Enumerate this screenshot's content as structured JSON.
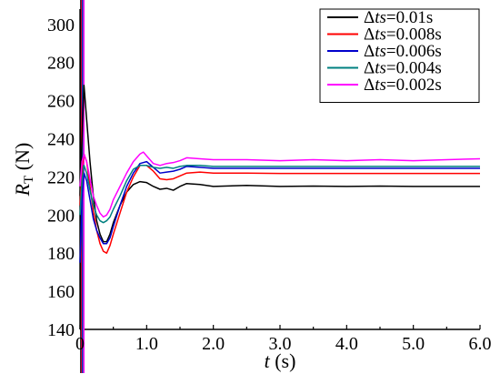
{
  "chart_data": {
    "type": "line",
    "xlabel": {
      "italic": "t",
      "rest": " (s)"
    },
    "ylabel": {
      "italic": "R",
      "sub": "T",
      "rest": " (N)"
    },
    "xlim": [
      0,
      6.0
    ],
    "ylim": [
      140,
      308
    ],
    "xticks": [
      "0",
      "1.0",
      "2.0",
      "3.0",
      "4.0",
      "5.0",
      "6.0"
    ],
    "yticks": [
      "140",
      "160",
      "180",
      "200",
      "220",
      "240",
      "260",
      "280",
      "300"
    ],
    "grid": false,
    "legend_position": "top-right",
    "series": [
      {
        "name": "Δts=0.01s",
        "legend": {
          "delta": "Δ",
          "italic": "ts",
          "rest": "=0.01s"
        },
        "color": "#000000",
        "points": [
          [
            0.0,
            210
          ],
          [
            0.03,
            240
          ],
          [
            0.06,
            268
          ],
          [
            0.1,
            250
          ],
          [
            0.15,
            228
          ],
          [
            0.2,
            210
          ],
          [
            0.25,
            197
          ],
          [
            0.3,
            190
          ],
          [
            0.35,
            186
          ],
          [
            0.4,
            186
          ],
          [
            0.45,
            190
          ],
          [
            0.5,
            196
          ],
          [
            0.6,
            205
          ],
          [
            0.7,
            212
          ],
          [
            0.8,
            216
          ],
          [
            0.9,
            217.5
          ],
          [
            1.0,
            217
          ],
          [
            1.1,
            215
          ],
          [
            1.2,
            213.5
          ],
          [
            1.3,
            214
          ],
          [
            1.4,
            213
          ],
          [
            1.5,
            215
          ],
          [
            1.6,
            216.5
          ],
          [
            1.8,
            216
          ],
          [
            2.0,
            215
          ],
          [
            2.5,
            215.5
          ],
          [
            3.0,
            215
          ],
          [
            3.5,
            215.2
          ],
          [
            4.0,
            215
          ],
          [
            4.5,
            215.2
          ],
          [
            5.0,
            215
          ],
          [
            5.5,
            215
          ],
          [
            6.0,
            215
          ]
        ]
      },
      {
        "name": "Δts=0.008s",
        "legend": {
          "delta": "Δ",
          "italic": "ts",
          "rest": "=0.008s"
        },
        "color": "#ff0000",
        "points": [
          [
            0.0,
            205
          ],
          [
            0.03,
            225
          ],
          [
            0.06,
            232
          ],
          [
            0.1,
            228
          ],
          [
            0.15,
            215
          ],
          [
            0.2,
            202
          ],
          [
            0.25,
            192
          ],
          [
            0.3,
            185
          ],
          [
            0.35,
            181
          ],
          [
            0.4,
            180
          ],
          [
            0.45,
            184
          ],
          [
            0.5,
            190
          ],
          [
            0.6,
            201
          ],
          [
            0.7,
            212
          ],
          [
            0.8,
            220
          ],
          [
            0.9,
            226
          ],
          [
            1.0,
            226
          ],
          [
            1.1,
            223
          ],
          [
            1.2,
            219
          ],
          [
            1.3,
            218.5
          ],
          [
            1.4,
            219
          ],
          [
            1.5,
            220.5
          ],
          [
            1.6,
            222
          ],
          [
            1.8,
            222.5
          ],
          [
            2.0,
            222
          ],
          [
            2.5,
            222
          ],
          [
            3.0,
            221.8
          ],
          [
            3.5,
            221.8
          ],
          [
            4.0,
            221.8
          ],
          [
            4.5,
            221.8
          ],
          [
            5.0,
            221.8
          ],
          [
            5.5,
            221.8
          ],
          [
            6.0,
            221.8
          ]
        ]
      },
      {
        "name": "Δts=0.006s",
        "legend": {
          "delta": "Δ",
          "italic": "ts",
          "rest": "=0.006s"
        },
        "color": "#0000cc",
        "points": [
          [
            0.0,
            175
          ],
          [
            0.03,
            208
          ],
          [
            0.06,
            222
          ],
          [
            0.1,
            218
          ],
          [
            0.15,
            208
          ],
          [
            0.2,
            198
          ],
          [
            0.25,
            192
          ],
          [
            0.3,
            188
          ],
          [
            0.35,
            185
          ],
          [
            0.4,
            185
          ],
          [
            0.45,
            188
          ],
          [
            0.5,
            194
          ],
          [
            0.6,
            205
          ],
          [
            0.7,
            215
          ],
          [
            0.8,
            222
          ],
          [
            0.9,
            227
          ],
          [
            1.0,
            228
          ],
          [
            1.1,
            225
          ],
          [
            1.2,
            222
          ],
          [
            1.3,
            222.5
          ],
          [
            1.4,
            223
          ],
          [
            1.5,
            224
          ],
          [
            1.6,
            225.5
          ],
          [
            1.8,
            225
          ],
          [
            2.0,
            224.5
          ],
          [
            2.5,
            224.5
          ],
          [
            3.0,
            224.5
          ],
          [
            3.5,
            224.5
          ],
          [
            4.0,
            224.5
          ],
          [
            4.5,
            224.5
          ],
          [
            5.0,
            224.5
          ],
          [
            5.5,
            224.5
          ],
          [
            6.0,
            224.5
          ]
        ]
      },
      {
        "name": "Δts=0.004s",
        "legend": {
          "delta": "Δ",
          "italic": "ts",
          "rest": "=0.004s"
        },
        "color": "#008080",
        "points": [
          [
            0.0,
            200
          ],
          [
            0.03,
            218
          ],
          [
            0.06,
            226
          ],
          [
            0.1,
            222
          ],
          [
            0.15,
            213
          ],
          [
            0.2,
            205
          ],
          [
            0.25,
            200
          ],
          [
            0.3,
            197
          ],
          [
            0.35,
            196
          ],
          [
            0.4,
            197
          ],
          [
            0.45,
            199
          ],
          [
            0.5,
            203
          ],
          [
            0.6,
            210
          ],
          [
            0.7,
            218
          ],
          [
            0.8,
            224
          ],
          [
            0.9,
            226
          ],
          [
            1.0,
            226
          ],
          [
            1.1,
            225
          ],
          [
            1.2,
            224.5
          ],
          [
            1.3,
            225
          ],
          [
            1.4,
            224.5
          ],
          [
            1.5,
            225.5
          ],
          [
            1.6,
            226
          ],
          [
            1.8,
            226
          ],
          [
            2.0,
            225.5
          ],
          [
            2.5,
            225.5
          ],
          [
            3.0,
            225.5
          ],
          [
            3.5,
            225.5
          ],
          [
            4.0,
            225.5
          ],
          [
            4.5,
            225.5
          ],
          [
            5.0,
            225.5
          ],
          [
            5.5,
            225.5
          ],
          [
            6.0,
            225.5
          ]
        ]
      },
      {
        "name": "Δts=0.002s",
        "legend": {
          "delta": "Δ",
          "italic": "ts",
          "rest": "=0.002s"
        },
        "color": "#ff00ff",
        "points": [
          [
            0.0,
            215
          ],
          [
            0.03,
            228
          ],
          [
            0.06,
            232
          ],
          [
            0.1,
            228
          ],
          [
            0.15,
            219
          ],
          [
            0.2,
            210
          ],
          [
            0.25,
            205
          ],
          [
            0.3,
            201
          ],
          [
            0.35,
            199
          ],
          [
            0.4,
            200
          ],
          [
            0.45,
            203
          ],
          [
            0.5,
            208
          ],
          [
            0.6,
            215
          ],
          [
            0.7,
            222
          ],
          [
            0.8,
            228
          ],
          [
            0.9,
            232
          ],
          [
            0.95,
            233
          ],
          [
            1.0,
            231
          ],
          [
            1.1,
            227
          ],
          [
            1.2,
            226
          ],
          [
            1.3,
            227
          ],
          [
            1.4,
            227.5
          ],
          [
            1.5,
            228.5
          ],
          [
            1.6,
            230
          ],
          [
            1.8,
            229.5
          ],
          [
            2.0,
            229
          ],
          [
            2.5,
            229
          ],
          [
            3.0,
            228.5
          ],
          [
            3.5,
            229
          ],
          [
            4.0,
            228.5
          ],
          [
            4.5,
            229
          ],
          [
            5.0,
            228.5
          ],
          [
            5.5,
            229
          ],
          [
            6.0,
            229.5
          ]
        ]
      }
    ],
    "initial_transient": {
      "colors": [
        "#000000",
        "#ff0000",
        "#0000cc",
        "#008080",
        "#ff00ff"
      ],
      "y_range": [
        100,
        320
      ]
    }
  }
}
